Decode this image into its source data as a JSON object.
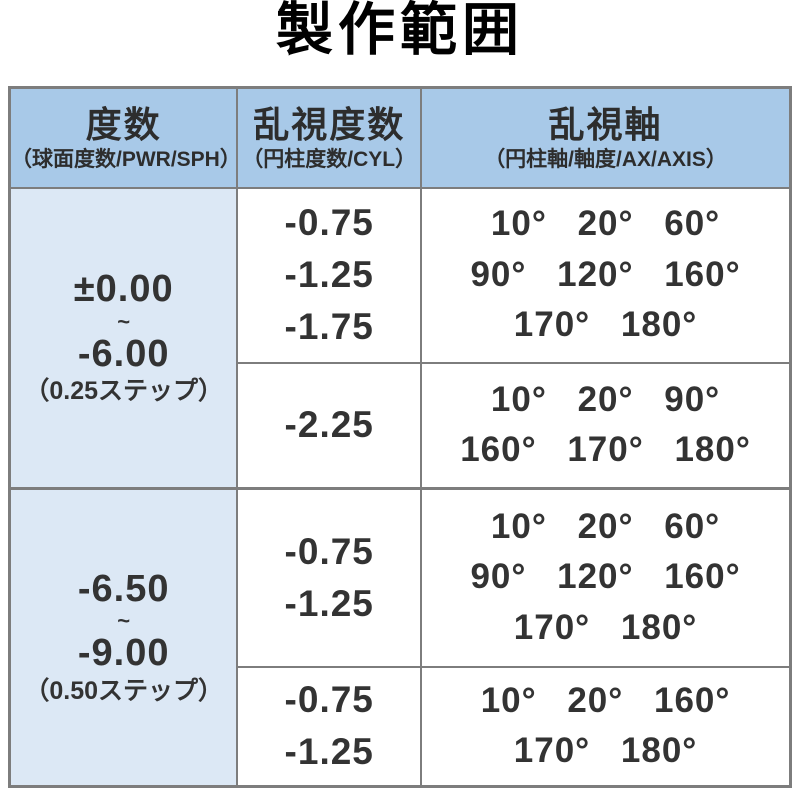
{
  "title": "製作範囲",
  "colors": {
    "header_bg": "#a8c9e8",
    "power_cell_bg": "#dce8f5",
    "border": "#7d7d7d",
    "text": "#333333",
    "title_text": "#000000"
  },
  "table": {
    "headers": [
      {
        "main": "度数",
        "sub": "（球面度数/PWR/SPH）"
      },
      {
        "main": "乱視度数",
        "sub": "（円柱度数/CYL）"
      },
      {
        "main": "乱視軸",
        "sub": "（円柱軸/軸度/AX/AXIS）"
      }
    ],
    "groups": [
      {
        "power": {
          "from": "±0.00",
          "tilde": "~",
          "to": "-6.00",
          "step": "（0.25ステップ）"
        },
        "rows": [
          {
            "cyl": [
              "-0.75",
              "-1.25",
              "-1.75"
            ],
            "axis": [
              "10° 20° 60°",
              "90° 120° 160°",
              "170° 180°"
            ]
          },
          {
            "cyl": [
              "-2.25"
            ],
            "axis": [
              "10° 20° 90°",
              "160° 170° 180°"
            ]
          }
        ]
      },
      {
        "power": {
          "from": "-6.50",
          "tilde": "~",
          "to": "-9.00",
          "step": "（0.50ステップ）"
        },
        "rows": [
          {
            "cyl": [
              "-0.75",
              "-1.25"
            ],
            "axis": [
              "10° 20° 60°",
              "90° 120° 160°",
              "170° 180°"
            ]
          },
          {
            "cyl": [
              "-0.75",
              "-1.25"
            ],
            "axis": [
              "10° 20° 160°",
              "170° 180°"
            ]
          }
        ]
      }
    ]
  }
}
